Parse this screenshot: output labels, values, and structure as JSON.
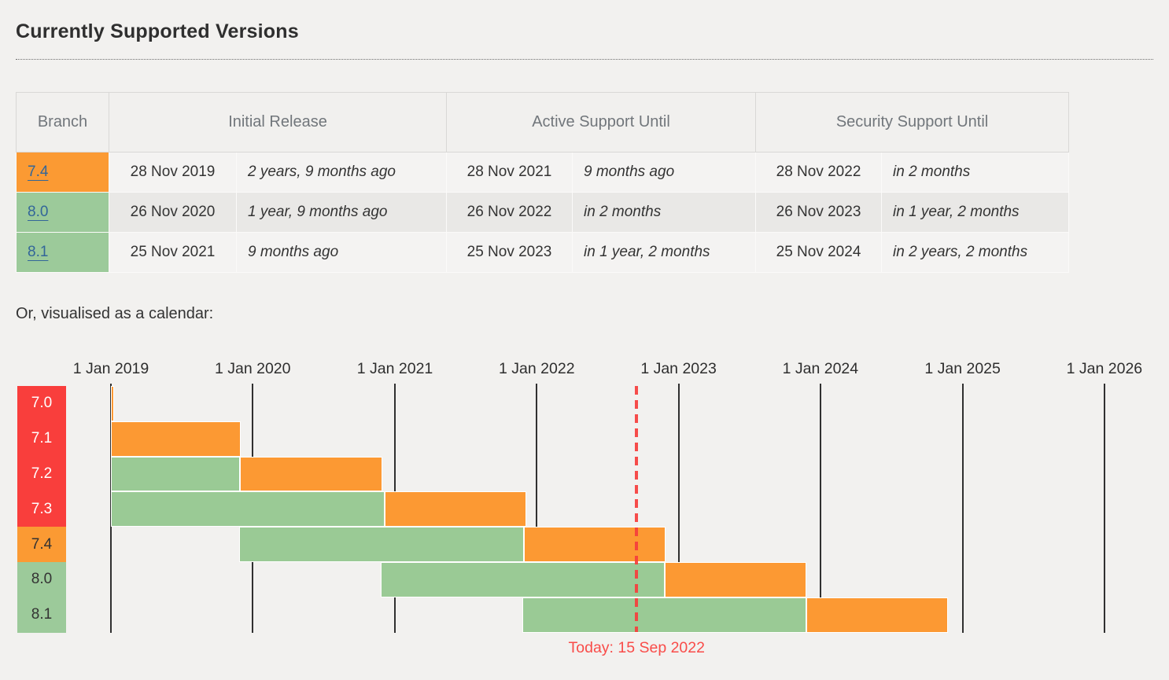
{
  "page": {
    "title": "Currently Supported Versions",
    "calendar_intro": "Or, visualised as a calendar:"
  },
  "table": {
    "headers": [
      "Branch",
      "Initial Release",
      "Active Support Until",
      "Security Support Until"
    ],
    "rows": [
      {
        "branch": "7.4",
        "branch_bg": "#fb9a33",
        "initial_release": "28 Nov 2019",
        "initial_release_rel": "2 years, 9 months ago",
        "active_until": "28 Nov 2021",
        "active_until_rel": "9 months ago",
        "security_until": "28 Nov 2022",
        "security_until_rel": "in 2 months"
      },
      {
        "branch": "8.0",
        "branch_bg": "#9cca9a",
        "initial_release": "26 Nov 2020",
        "initial_release_rel": "1 year, 9 months ago",
        "active_until": "26 Nov 2022",
        "active_until_rel": "in 2 months",
        "security_until": "26 Nov 2023",
        "security_until_rel": "in 1 year, 2 months"
      },
      {
        "branch": "8.1",
        "branch_bg": "#9cca9a",
        "initial_release": "25 Nov 2021",
        "initial_release_rel": "9 months ago",
        "active_until": "25 Nov 2023",
        "active_until_rel": "in 1 year, 2 months",
        "security_until": "25 Nov 2024",
        "security_until_rel": "in 2 years, 2 months"
      }
    ]
  },
  "chart_data": {
    "type": "gantt-timeline",
    "x_axis": {
      "start": "2019-01-01",
      "end": "2026-01-01",
      "tick_labels": [
        "1 Jan 2019",
        "1 Jan 2020",
        "1 Jan 2021",
        "1 Jan 2022",
        "1 Jan 2023",
        "1 Jan 2024",
        "1 Jan 2025",
        "1 Jan 2026"
      ],
      "grid": true
    },
    "today": {
      "date": "2022-09-15",
      "label": "Today: 15 Sep 2022"
    },
    "branches": [
      {
        "label": "7.0",
        "status": "eol",
        "active_support": null,
        "security_support": [
          "2019-01-01",
          "2019-01-10"
        ]
      },
      {
        "label": "7.1",
        "status": "eol",
        "active_support": null,
        "security_support": [
          "2019-01-01",
          "2019-12-01"
        ]
      },
      {
        "label": "7.2",
        "status": "eol",
        "active_support": [
          "2019-01-01",
          "2019-11-30"
        ],
        "security_support": [
          "2019-11-30",
          "2020-11-30"
        ]
      },
      {
        "label": "7.3",
        "status": "eol",
        "active_support": [
          "2019-01-01",
          "2020-12-06"
        ],
        "security_support": [
          "2020-12-06",
          "2021-12-06"
        ]
      },
      {
        "label": "7.4",
        "status": "security",
        "active_support": [
          "2019-11-28",
          "2021-11-28"
        ],
        "security_support": [
          "2021-11-28",
          "2022-11-28"
        ]
      },
      {
        "label": "8.0",
        "status": "active",
        "active_support": [
          "2020-11-26",
          "2022-11-26"
        ],
        "security_support": [
          "2022-11-26",
          "2023-11-26"
        ]
      },
      {
        "label": "8.1",
        "status": "active",
        "active_support": [
          "2021-11-25",
          "2023-11-25"
        ],
        "security_support": [
          "2023-11-25",
          "2024-11-25"
        ]
      }
    ],
    "colors": {
      "active_bar": "#9aca95",
      "security_bar": "#fc9933",
      "label_eol": "#f93e3c",
      "label_security": "#fb9a33",
      "label_active": "#9cca9a",
      "label_text_eol": "#ffffff",
      "label_text_other": "#333333",
      "gridline": "#303030",
      "today": "#f63e3c"
    },
    "legend_position": "none"
  }
}
